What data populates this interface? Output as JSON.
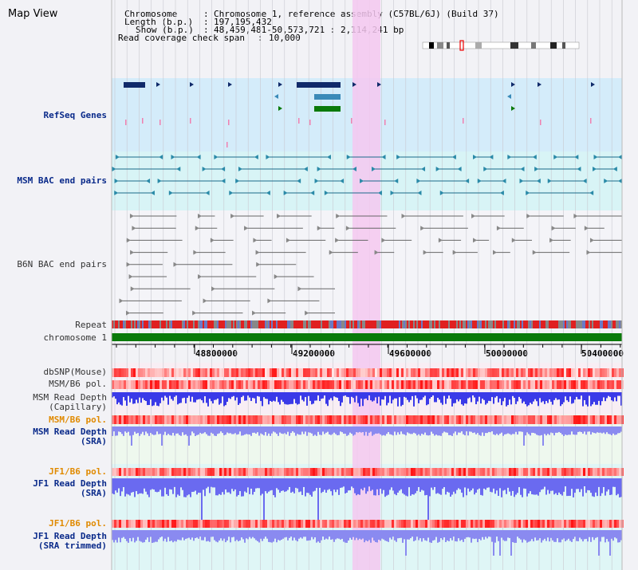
{
  "title": "Map View",
  "info": {
    "chromosome_label": "Chromosome",
    "chromosome_value": "Chromosome 1, reference assembly (C57BL/6J) (Build 37)",
    "length_label": "Length (b.p.)",
    "length_value": "197,195,432",
    "show_label": "Show (b.p.)",
    "show_value": "48,459,481-50,573,721 : 2,114,241 bp",
    "coverage_label": "Read coverage check span",
    "coverage_value": "10,000"
  },
  "tracks": {
    "refseq": "RefSeq Genes",
    "msm_bac": "MSM BAC end pairs",
    "b6n_bac": "B6N BAC end pairs",
    "repeat": "Repeat",
    "chromosome": "chromosome 1",
    "dbsnp": "dbSNP(Mouse)",
    "msm_b6_pol_1": "MSM/B6 pol.",
    "msm_read_depth_cap_1": "MSM Read Depth",
    "msm_read_depth_cap_2": "(Capillary)",
    "msm_b6_pol_2": "MSM/B6 pol.",
    "msm_read_depth_sra_1": "MSM Read Depth",
    "msm_read_depth_sra_2": "(SRA)",
    "jf1_b6_pol_1": "JF1/B6 pol.",
    "jf1_read_depth_sra_1": "JF1 Read Depth",
    "jf1_read_depth_sra_2": "(SRA)",
    "jf1_b6_pol_2": "JF1/B6 pol.",
    "jf1_read_depth_trim_1": "JF1 Read Depth",
    "jf1_read_depth_trim_2": "(SRA trimmed)"
  },
  "axis_ticks": [
    "48800000",
    "49200000",
    "49600000",
    "50000000",
    "50400000"
  ],
  "colors": {
    "highlight": "#f5c8f0",
    "refseq_bg": "#d4ecfa",
    "msm_bac_bg": "#d8f4f6",
    "depth_blue": "#3a3ae8",
    "depth_light": "#8a8af0",
    "chromosome_green": "#0a7a0a"
  }
}
